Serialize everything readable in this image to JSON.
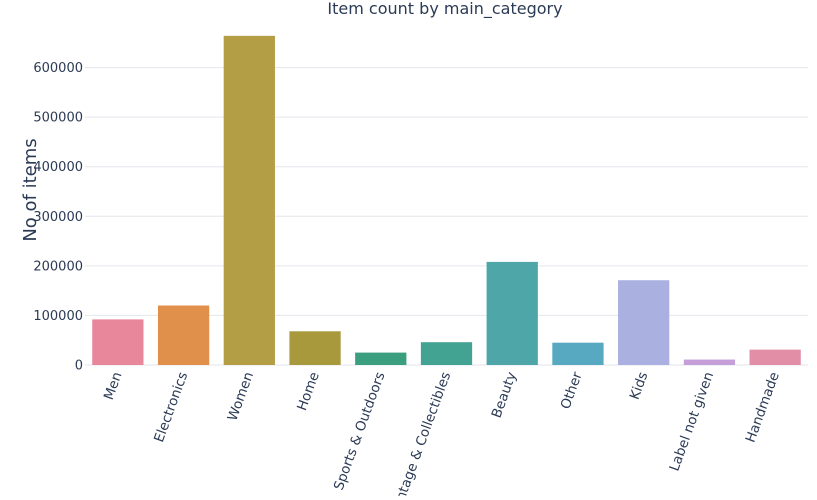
{
  "chart_data": {
    "type": "bar",
    "title": "Item count by main_category",
    "xlabel": "",
    "ylabel": "No of items",
    "categories": [
      "Men",
      "Electronics",
      "Women",
      "Home",
      "Sports & Outdoors",
      "Vintage & Collectibles",
      "Beauty",
      "Other",
      "Kids",
      "Label not given",
      "Handmade"
    ],
    "values": [
      92000,
      120000,
      664000,
      68000,
      25000,
      46000,
      208000,
      45000,
      171000,
      11000,
      31000
    ],
    "colors": [
      "#e8879b",
      "#e0904a",
      "#b39d45",
      "#a89a3c",
      "#3b9e7f",
      "#43a392",
      "#4ea6a9",
      "#56a9c0",
      "#aab0e0",
      "#c79fd8",
      "#e28ea7"
    ],
    "yticks": [
      0,
      100000,
      200000,
      300000,
      400000,
      500000,
      600000
    ],
    "ylim": [
      0,
      700000
    ],
    "grid": true,
    "gridColor": "#e3e6ec"
  }
}
